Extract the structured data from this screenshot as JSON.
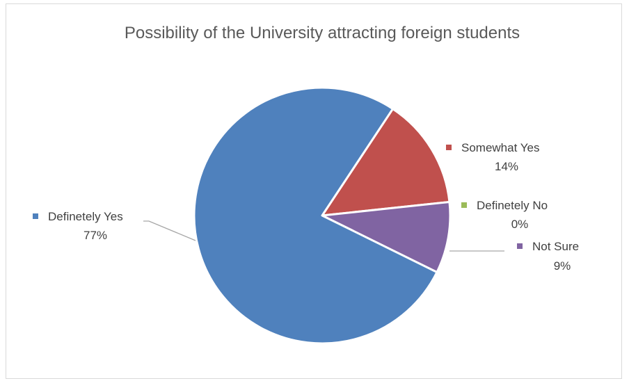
{
  "chart_data": {
    "type": "pie",
    "title": "Possibility of the University attracting foreign students",
    "slices": [
      {
        "name": "Definetely Yes",
        "value": 77,
        "label": "77%",
        "color": "#4f81bd"
      },
      {
        "name": "Somewhat Yes",
        "value": 14,
        "label": "14%",
        "color": "#c0504d"
      },
      {
        "name": "Definetely No",
        "value": 0,
        "label": "0%",
        "color": "#9bbb59"
      },
      {
        "name": "Not Sure",
        "value": 9,
        "label": "9%",
        "color": "#8064a2"
      }
    ],
    "legend": "none",
    "data_labels": "category name and percentage"
  }
}
